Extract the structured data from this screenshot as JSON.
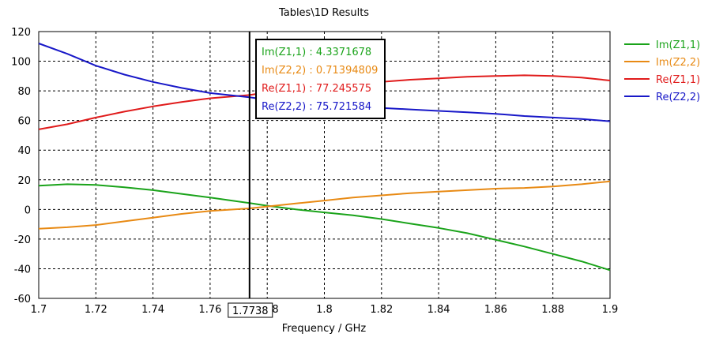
{
  "chart_data": {
    "type": "line",
    "title": "Tables\\1D Results",
    "xlabel": "Frequency / GHz",
    "ylabel": "",
    "xlim": [
      1.7,
      1.9
    ],
    "ylim": [
      -60,
      120
    ],
    "xticks": [
      1.7,
      1.72,
      1.74,
      1.76,
      1.78,
      1.8,
      1.82,
      1.84,
      1.86,
      1.88,
      1.9
    ],
    "xtick_labels": [
      "1.7",
      "1.72",
      "1.74",
      "1.76",
      "1.78",
      "1.8",
      "1.82",
      "1.84",
      "1.86",
      "1.88",
      "1.9"
    ],
    "yticks": [
      -60,
      -40,
      -20,
      0,
      20,
      40,
      60,
      80,
      100,
      120
    ],
    "ytick_labels": [
      "-60",
      "-40",
      "-20",
      "0",
      "20",
      "40",
      "60",
      "80",
      "100",
      "120"
    ],
    "grid": true,
    "legend_position": "right",
    "marker": {
      "x": 1.7738,
      "label": "1.7738",
      "readouts": [
        {
          "text": "Im(Z1,1) : 4.3371678",
          "color": "#1aa31a"
        },
        {
          "text": "Im(Z2,2) : 0.71394809",
          "color": "#e88a14"
        },
        {
          "text": "Re(Z1,1) : 77.245575",
          "color": "#e01b1b"
        },
        {
          "text": "Re(Z2,2) : 75.721584",
          "color": "#1818c8"
        }
      ]
    },
    "x": [
      1.7,
      1.71,
      1.72,
      1.73,
      1.74,
      1.75,
      1.76,
      1.7738,
      1.78,
      1.79,
      1.8,
      1.81,
      1.82,
      1.83,
      1.84,
      1.85,
      1.86,
      1.87,
      1.88,
      1.89,
      1.9
    ],
    "series": [
      {
        "name": "Im(Z1,1)",
        "color": "#1aa31a",
        "values": [
          16,
          17,
          16.5,
          15,
          13,
          10.5,
          8,
          4.3,
          2.5,
          0,
          -2,
          -4,
          -6.5,
          -9.5,
          -12.5,
          -16,
          -20.5,
          -25,
          -30,
          -35,
          -41
        ]
      },
      {
        "name": "Im(Z2,2)",
        "color": "#e88a14",
        "values": [
          -13,
          -12,
          -10.5,
          -8,
          -5.5,
          -3,
          -1,
          0.7,
          2,
          4,
          6,
          8,
          9.5,
          11,
          12,
          13,
          14,
          14.5,
          15.5,
          17,
          19
        ]
      },
      {
        "name": "Re(Z1,1)",
        "color": "#e01b1b",
        "values": [
          54,
          57.5,
          62,
          66,
          69.5,
          72.5,
          75,
          77.2,
          79,
          81,
          83,
          84.5,
          86,
          87.5,
          88.5,
          89.5,
          90,
          90.5,
          90,
          89,
          87
        ]
      },
      {
        "name": "Re(Z2,2)",
        "color": "#1818c8",
        "values": [
          112,
          105,
          97,
          91,
          86,
          82,
          78.5,
          75.7,
          74,
          72,
          70.5,
          69.5,
          68.5,
          67.5,
          66.5,
          65.5,
          64.5,
          63,
          62,
          61,
          59.5
        ]
      }
    ]
  }
}
